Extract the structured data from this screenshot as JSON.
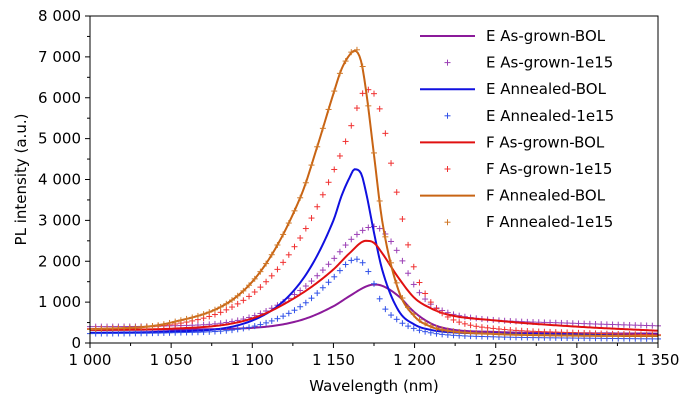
{
  "chart_data": {
    "type": "line",
    "title": "",
    "xlabel": "Wavelength (nm)",
    "ylabel": "PL intensity (a.u.)",
    "xlim": [
      1000,
      1350
    ],
    "ylim": [
      0,
      8000
    ],
    "x_ticks": [
      1000,
      1050,
      1100,
      1150,
      1200,
      1250,
      1300,
      1350
    ],
    "x_tick_labels": [
      "1 000",
      "1 050",
      "1 100",
      "1 150",
      "1 200",
      "1 250",
      "1 300",
      "1 350"
    ],
    "y_ticks": [
      0,
      1000,
      2000,
      3000,
      4000,
      5000,
      6000,
      7000,
      8000
    ],
    "y_tick_labels": [
      "0",
      "1 000",
      "2 000",
      "3 000",
      "4 000",
      "5 000",
      "6 000",
      "7 000",
      "8 000"
    ],
    "grid": false,
    "legend_position": "top-right",
    "series": [
      {
        "name": "E As-grown-BOL",
        "style": "line",
        "color": "#8B1A9A",
        "x": [
          1000,
          1050,
          1100,
          1130,
          1150,
          1160,
          1170,
          1175,
          1180,
          1190,
          1200,
          1210,
          1220,
          1250,
          1300,
          1350
        ],
        "y": [
          320,
          330,
          370,
          560,
          900,
          1150,
          1380,
          1430,
          1400,
          1150,
          750,
          480,
          350,
          270,
          240,
          230
        ]
      },
      {
        "name": "E As-grown-1e15",
        "style": "markers",
        "color": "#9B3FB5",
        "x": [
          1000,
          1050,
          1100,
          1130,
          1150,
          1160,
          1170,
          1175,
          1180,
          1190,
          1200,
          1210,
          1220,
          1230,
          1250,
          1300,
          1350
        ],
        "y": [
          400,
          420,
          650,
          1300,
          2050,
          2500,
          2800,
          2850,
          2750,
          2200,
          1400,
          950,
          750,
          650,
          560,
          480,
          420
        ]
      },
      {
        "name": "E Annealed-BOL",
        "style": "line",
        "color": "#1010E0",
        "x": [
          1000,
          1050,
          1100,
          1130,
          1150,
          1155,
          1160,
          1163,
          1167,
          1170,
          1175,
          1180,
          1190,
          1200,
          1210,
          1220,
          1250,
          1300,
          1350
        ],
        "y": [
          250,
          280,
          550,
          1500,
          3000,
          3600,
          4050,
          4250,
          4150,
          3700,
          2700,
          1800,
          800,
          450,
          320,
          270,
          230,
          210,
          200
        ]
      },
      {
        "name": "E Annealed-1e15",
        "style": "markers",
        "color": "#3050E8",
        "x": [
          1000,
          1050,
          1100,
          1130,
          1150,
          1160,
          1165,
          1170,
          1175,
          1180,
          1190,
          1200,
          1210,
          1220,
          1250,
          1300,
          1350
        ],
        "y": [
          230,
          250,
          400,
          900,
          1600,
          2000,
          2050,
          1850,
          1450,
          950,
          550,
          350,
          250,
          200,
          150,
          120,
          100
        ]
      },
      {
        "name": "F As-grown-BOL",
        "style": "line",
        "color": "#E01010",
        "x": [
          1000,
          1050,
          1100,
          1130,
          1150,
          1160,
          1170,
          1175,
          1180,
          1190,
          1200,
          1210,
          1220,
          1250,
          1300,
          1350
        ],
        "y": [
          320,
          350,
          600,
          1200,
          1800,
          2200,
          2500,
          2450,
          2200,
          1600,
          1100,
          850,
          700,
          550,
          400,
          300
        ]
      },
      {
        "name": "F As-grown-1e15",
        "style": "markers",
        "color": "#F03030",
        "x": [
          1000,
          1050,
          1100,
          1130,
          1150,
          1160,
          1165,
          1170,
          1175,
          1180,
          1185,
          1190,
          1200,
          1210,
          1220,
          1230,
          1250,
          1300,
          1350
        ],
        "y": [
          350,
          450,
          1200,
          2600,
          4200,
          5200,
          5800,
          6200,
          6100,
          5500,
          4500,
          3500,
          1800,
          1000,
          650,
          480,
          350,
          250,
          200
        ]
      },
      {
        "name": "F Annealed-BOL",
        "style": "line",
        "color": "#C86414",
        "x": [
          1000,
          1050,
          1100,
          1130,
          1140,
          1150,
          1155,
          1160,
          1163,
          1167,
          1170,
          1175,
          1180,
          1190,
          1200,
          1210,
          1220,
          1250,
          1300,
          1350
        ],
        "y": [
          330,
          500,
          1500,
          3600,
          4800,
          6100,
          6700,
          7050,
          7150,
          6900,
          6200,
          4600,
          3000,
          1300,
          650,
          400,
          300,
          220,
          180,
          170
        ]
      },
      {
        "name": "F Annealed-1e15",
        "style": "markers",
        "color": "#D07828",
        "x": [
          1000,
          1050,
          1100,
          1130,
          1140,
          1150,
          1155,
          1160,
          1163,
          1167,
          1170,
          1175,
          1180,
          1190,
          1200,
          1210,
          1220,
          1250,
          1300,
          1350
        ],
        "y": [
          330,
          500,
          1500,
          3600,
          4800,
          6100,
          6700,
          7050,
          7200,
          6950,
          6250,
          4650,
          3050,
          1350,
          680,
          420,
          310,
          230,
          190,
          180
        ]
      }
    ]
  }
}
